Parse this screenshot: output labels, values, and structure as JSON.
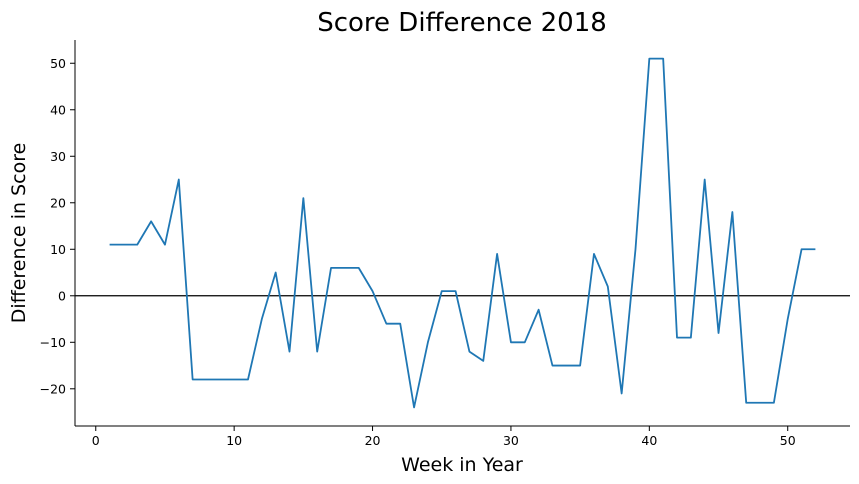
{
  "chart_data": {
    "type": "line",
    "title": "Score Difference 2018",
    "xlabel": "Week in Year",
    "ylabel": "Difference in Score",
    "xlim": [
      -1.5,
      54.5
    ],
    "ylim": [
      -28,
      55
    ],
    "xticks": [
      0,
      10,
      20,
      30,
      40,
      50
    ],
    "yticks": [
      -20,
      -10,
      0,
      10,
      20,
      30,
      40,
      50
    ],
    "xtick_labels": [
      "0",
      "10",
      "20",
      "30",
      "40",
      "50"
    ],
    "ytick_labels": [
      "−20",
      "−10",
      "0",
      "10",
      "20",
      "30",
      "40",
      "50"
    ],
    "reference_line": {
      "y": 0,
      "color": "#000000"
    },
    "grid": false,
    "legend": "none",
    "series": [
      {
        "color": "#1f77b4",
        "x": [
          1,
          2,
          3,
          4,
          5,
          6,
          7,
          8,
          9,
          10,
          11,
          12,
          13,
          14,
          15,
          16,
          17,
          18,
          19,
          20,
          21,
          22,
          23,
          24,
          25,
          26,
          27,
          28,
          29,
          30,
          31,
          32,
          33,
          34,
          35,
          36,
          37,
          38,
          39,
          40,
          41,
          42,
          43,
          44,
          45,
          46,
          47,
          48,
          49,
          50,
          51,
          52
        ],
        "y": [
          11,
          11,
          11,
          16,
          11,
          25,
          -18,
          -18,
          -18,
          -18,
          -18,
          -5,
          5,
          -12,
          21,
          -12,
          6,
          6,
          6,
          1,
          -6,
          -6,
          -24,
          -10,
          1,
          1,
          -12,
          -14,
          9,
          -10,
          -10,
          -3,
          -15,
          -15,
          -15,
          9,
          2,
          -21,
          10,
          51,
          51,
          -9,
          -9,
          25,
          -8,
          18,
          -23,
          -23,
          -23,
          -5,
          10,
          10
        ]
      }
    ]
  }
}
